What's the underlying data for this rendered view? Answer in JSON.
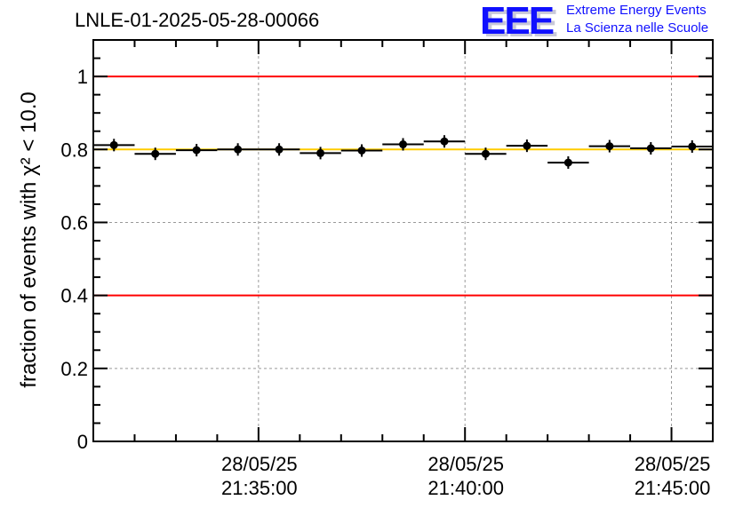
{
  "chart_data": {
    "type": "scatter",
    "title": "LNLE-01-2025-05-28-00066",
    "xlabel": "",
    "ylabel": "fraction of events with χ² < 10.0",
    "ylabel_parts": {
      "pre": "fraction of events with ",
      "chi": "X",
      "sup": "2",
      "post": " < 10.0"
    },
    "xlim": [
      "21:31:00",
      "21:46:00"
    ],
    "xlim_minutes": [
      0,
      15
    ],
    "ylim": [
      0,
      1.1
    ],
    "grid": true,
    "x_ticks": [
      {
        "minute": 4,
        "date": "28/05/25",
        "time": "21:35:00"
      },
      {
        "minute": 9,
        "date": "28/05/25",
        "time": "21:40:00"
      },
      {
        "minute": 14,
        "date": "28/05/25",
        "time": "21:45:00"
      }
    ],
    "y_ticks": [
      {
        "value": 0,
        "label": "0"
      },
      {
        "value": 0.2,
        "label": "0.2"
      },
      {
        "value": 0.4,
        "label": "0.4"
      },
      {
        "value": 0.6,
        "label": "0.6"
      },
      {
        "value": 0.8,
        "label": "0.8"
      },
      {
        "value": 1.0,
        "label": "1"
      }
    ],
    "bin_width_minutes": 1,
    "x_minutes": [
      0.5,
      1.5,
      2.5,
      3.5,
      4.5,
      5.5,
      6.5,
      7.5,
      8.5,
      9.5,
      10.5,
      11.5,
      12.5,
      13.5,
      14.5
    ],
    "values": [
      0.812,
      0.788,
      0.798,
      0.8,
      0.8,
      0.79,
      0.797,
      0.814,
      0.822,
      0.788,
      0.81,
      0.764,
      0.809,
      0.803,
      0.808
    ],
    "reference_lines": [
      {
        "value": 1.0,
        "color": "#ff0000"
      },
      {
        "value": 0.4,
        "color": "#ff0000"
      },
      {
        "value": 0.8,
        "color": "#ffcc00"
      }
    ]
  },
  "logo": {
    "letters": "EEE",
    "line1": "Extreme Energy Events",
    "line2": "La Scienza nelle Scuole"
  }
}
